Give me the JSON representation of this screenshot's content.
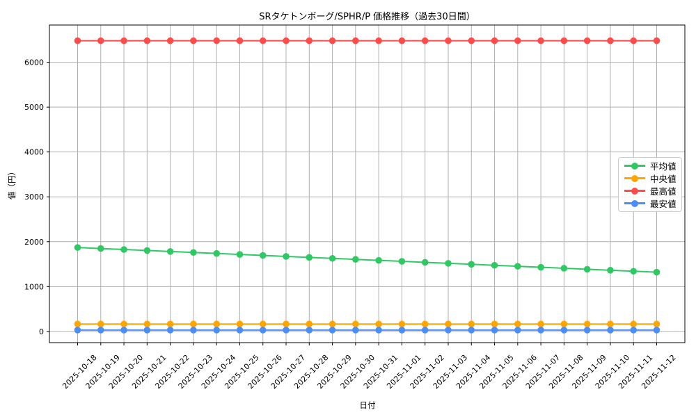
{
  "title": "SRタケトンボーグ/SPHR/P 価格推移（過去30日間）",
  "chart_data": {
    "type": "line",
    "x": [
      "2025-10-18",
      "2025-10-19",
      "2025-10-20",
      "2025-10-21",
      "2025-10-22",
      "2025-10-23",
      "2025-10-24",
      "2025-10-25",
      "2025-10-26",
      "2025-10-27",
      "2025-10-28",
      "2025-10-29",
      "2025-10-30",
      "2025-10-31",
      "2025-11-01",
      "2025-11-02",
      "2025-11-03",
      "2025-11-04",
      "2025-11-05",
      "2025-11-06",
      "2025-11-07",
      "2025-11-08",
      "2025-11-09",
      "2025-11-10",
      "2025-11-11",
      "2025-11-12"
    ],
    "series": [
      {
        "name": "平均値",
        "color": "#30C764",
        "values": [
          1870,
          1848,
          1826,
          1804,
          1782,
          1760,
          1738,
          1716,
          1694,
          1672,
          1650,
          1628,
          1606,
          1584,
          1562,
          1540,
          1518,
          1496,
          1474,
          1452,
          1430,
          1408,
          1386,
          1364,
          1342,
          1320
        ]
      },
      {
        "name": "中央値",
        "color": "#FFA500",
        "values": [
          165,
          165,
          165,
          165,
          165,
          165,
          165,
          165,
          165,
          165,
          165,
          165,
          165,
          165,
          165,
          165,
          165,
          165,
          165,
          165,
          165,
          165,
          165,
          165,
          165,
          165
        ]
      },
      {
        "name": "最高値",
        "color": "#FC4D4D",
        "values": [
          6480,
          6480,
          6480,
          6480,
          6480,
          6480,
          6480,
          6480,
          6480,
          6480,
          6480,
          6480,
          6480,
          6480,
          6480,
          6480,
          6480,
          6480,
          6480,
          6480,
          6480,
          6480,
          6480,
          6480,
          6480,
          6480
        ]
      },
      {
        "name": "最安値",
        "color": "#4D8EF5",
        "values": [
          30,
          30,
          30,
          30,
          30,
          30,
          30,
          30,
          30,
          30,
          30,
          30,
          30,
          30,
          30,
          30,
          30,
          30,
          30,
          30,
          30,
          30,
          30,
          30,
          30,
          30
        ]
      }
    ],
    "xlabel": "日付",
    "ylabel": "値（円）",
    "yticks": [
      0,
      1000,
      2000,
      3000,
      4000,
      5000,
      6000
    ],
    "ylim": [
      -250,
      6830
    ],
    "grid": true,
    "grid_color": "#b0b0b0",
    "legend_position": "center right"
  }
}
